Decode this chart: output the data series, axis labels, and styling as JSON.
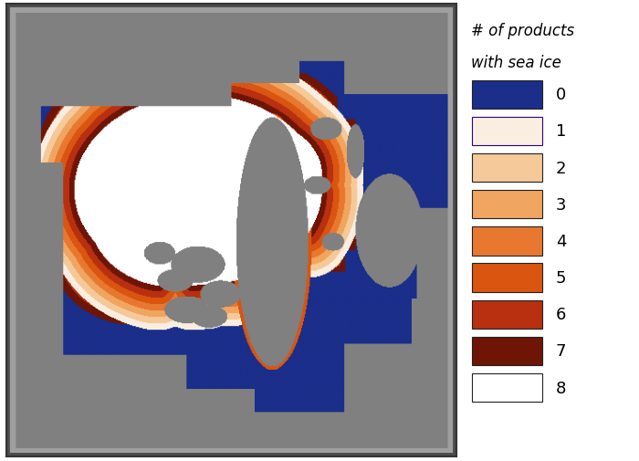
{
  "title": "# of products\nwith sea ice",
  "colors": [
    "#1a2e8a",
    "#faeee0",
    "#f5c99a",
    "#f0a560",
    "#e87830",
    "#d95510",
    "#b83010",
    "#6e1505",
    "#ffffff"
  ],
  "labels": [
    "0",
    "1",
    "2",
    "3",
    "4",
    "5",
    "6",
    "7",
    "8"
  ],
  "background_gray": [
    0.627,
    0.627,
    0.627
  ],
  "land_gray": [
    0.502,
    0.502,
    0.502
  ],
  "ocean_color": "#1a2e8a",
  "figure_bg": "#ffffff",
  "title_fontsize": 12,
  "label_fontsize": 13,
  "map_border_color": "#333333"
}
